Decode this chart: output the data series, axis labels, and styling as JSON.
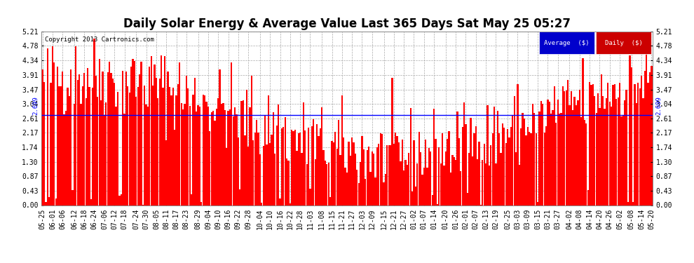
{
  "title": "Daily Solar Energy & Average Value Last 365 Days Sat May 25 05:27",
  "copyright": "Copyright 2013 Cartronics.com",
  "average_value": 2.699,
  "average_label": "2.699",
  "bar_color": "#ff0000",
  "avg_line_color": "#0000ff",
  "background_color": "#ffffff",
  "grid_color": "#aaaaaa",
  "ylim": [
    0.0,
    5.21
  ],
  "yticks": [
    0.0,
    0.43,
    0.87,
    1.3,
    1.74,
    2.17,
    2.61,
    3.04,
    3.47,
    3.91,
    4.34,
    4.78,
    5.21
  ],
  "legend_avg_bg": "#0000cc",
  "legend_daily_bg": "#cc0000",
  "legend_text_color": "#ffffff",
  "title_fontsize": 12,
  "axis_fontsize": 7,
  "n_days": 365,
  "seed": 42,
  "xtick_labels": [
    "05-25",
    "06-01",
    "06-06",
    "06-12",
    "06-18",
    "06-24",
    "07-06",
    "07-12",
    "07-18",
    "07-24",
    "07-30",
    "08-05",
    "08-11",
    "08-17",
    "08-23",
    "08-29",
    "09-04",
    "09-10",
    "09-16",
    "09-22",
    "09-28",
    "10-04",
    "10-10",
    "10-16",
    "10-22",
    "10-28",
    "11-03",
    "11-08",
    "11-15",
    "11-21",
    "11-27",
    "12-03",
    "12-09",
    "12-15",
    "12-21",
    "12-27",
    "01-02",
    "01-07",
    "01-14",
    "01-20",
    "01-26",
    "02-01",
    "02-07",
    "02-13",
    "02-19",
    "02-25",
    "03-03",
    "03-09",
    "03-15",
    "03-21",
    "03-27",
    "04-02",
    "04-08",
    "04-14",
    "04-20",
    "04-26",
    "05-02",
    "05-08",
    "05-14",
    "05-20"
  ]
}
